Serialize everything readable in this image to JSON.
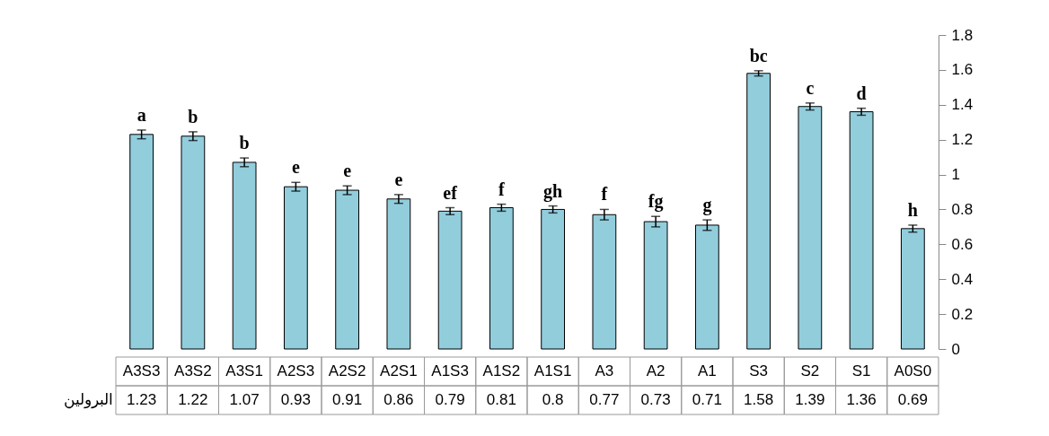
{
  "chart_data": {
    "type": "bar",
    "categories": [
      "A3S3",
      "A3S2",
      "A3S1",
      "A2S3",
      "A2S2",
      "A2S1",
      "A1S3",
      "A1S2",
      "A1S1",
      "A3",
      "A2",
      "A1",
      "S3",
      "S2",
      "S1",
      "A0S0"
    ],
    "series": [
      {
        "name": "البرولين",
        "color": "#92cddc",
        "values": [
          1.23,
          1.22,
          1.07,
          0.93,
          0.91,
          0.86,
          0.79,
          0.81,
          0.8,
          0.77,
          0.73,
          0.71,
          1.58,
          1.39,
          1.36,
          0.69
        ],
        "errors": [
          0.025,
          0.025,
          0.025,
          0.025,
          0.025,
          0.025,
          0.02,
          0.02,
          0.02,
          0.03,
          0.03,
          0.03,
          0.015,
          0.02,
          0.02,
          0.02
        ]
      }
    ],
    "ylim": [
      0,
      1.8
    ],
    "yticks": [
      0,
      0.2,
      0.4,
      0.6,
      0.8,
      1,
      1.2,
      1.4,
      1.6,
      1.8
    ],
    "grid": false,
    "data_labels": true,
    "annotations": [
      {
        "text": "a",
        "x": "A3S3",
        "y": 1.255
      },
      {
        "text": "b",
        "x": "A3S2",
        "y": 1.245
      },
      {
        "text": "b",
        "x": "A3S1",
        "y": 1.095
      },
      {
        "text": "e",
        "x": "A2S3",
        "y": 0.955
      },
      {
        "text": "e",
        "x": "A2S2",
        "y": 0.935
      },
      {
        "text": "e",
        "x": "A2S1",
        "y": 0.885
      },
      {
        "text": "ef",
        "x": "A1S3",
        "y": 0.81
      },
      {
        "text": "f",
        "x": "A1S2",
        "y": 0.83
      },
      {
        "text": "gh",
        "x": "A1S1",
        "y": 0.82
      },
      {
        "text": "f",
        "x": "A3",
        "y": 0.8
      },
      {
        "text": "fg",
        "x": "A2",
        "y": 0.76
      },
      {
        "text": "g",
        "x": "A1",
        "y": 0.74
      },
      {
        "text": "bc",
        "x": "S3",
        "y": 1.595
      },
      {
        "text": "c",
        "x": "S2",
        "y": 1.41
      },
      {
        "text": "d",
        "x": "S1",
        "y": 1.38
      },
      {
        "text": "h",
        "x": "A0S0",
        "y": 0.71
      }
    ]
  }
}
